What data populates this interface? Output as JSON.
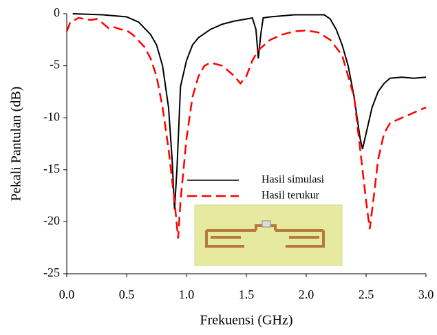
{
  "chart_data": {
    "type": "line",
    "xlabel": "Frekuensi (GHz)",
    "ylabel": "Pekali Pantulan (dB)",
    "xlim": [
      0,
      3
    ],
    "ylim": [
      -25,
      0
    ],
    "xticks": [
      {
        "value": 0,
        "label": "0.0"
      },
      0.5,
      {
        "value": 1,
        "label": "1.0"
      },
      1.5,
      {
        "value": 2,
        "label": "2.0"
      },
      2.5,
      {
        "value": 3,
        "label": "3.0"
      }
    ],
    "yticks": [
      0,
      -5,
      -10,
      -15,
      -20,
      -25
    ],
    "series": [
      {
        "name": "Hasil simulasi",
        "color": "#000000",
        "dash": false,
        "x": [
          0.05,
          0.3,
          0.5,
          0.6,
          0.7,
          0.75,
          0.8,
          0.85,
          0.88,
          0.9,
          0.92,
          0.95,
          1.0,
          1.05,
          1.1,
          1.2,
          1.3,
          1.4,
          1.5,
          1.55,
          1.58,
          1.6,
          1.62,
          1.64,
          1.7,
          1.8,
          1.9,
          2.0,
          2.1,
          2.15,
          2.2,
          2.25,
          2.3,
          2.35,
          2.4,
          2.45,
          2.47,
          2.5,
          2.55,
          2.6,
          2.65,
          2.7,
          2.8,
          2.9,
          3.0
        ],
        "values": [
          0,
          -0.1,
          -0.3,
          -0.8,
          -2,
          -3,
          -5,
          -9,
          -14,
          -18.8,
          -15,
          -7,
          -4.5,
          -3,
          -2.3,
          -1.5,
          -1,
          -0.7,
          -0.5,
          -0.4,
          -1.5,
          -4.3,
          -2,
          -0.4,
          -0.3,
          -0.2,
          -0.1,
          -0.1,
          -0.1,
          -0.1,
          -0.5,
          -1.5,
          -3,
          -5,
          -8,
          -12,
          -13,
          -11.5,
          -9,
          -7.5,
          -6.7,
          -6.2,
          -6.1,
          -6.2,
          -6.1
        ]
      },
      {
        "name": "Hasil terukur",
        "color": "#ff0000",
        "dash": true,
        "x": [
          0,
          0.03,
          0.1,
          0.15,
          0.2,
          0.25,
          0.3,
          0.35,
          0.4,
          0.45,
          0.5,
          0.55,
          0.6,
          0.65,
          0.7,
          0.75,
          0.8,
          0.85,
          0.9,
          0.93,
          0.95,
          1.0,
          1.05,
          1.1,
          1.15,
          1.2,
          1.3,
          1.35,
          1.4,
          1.45,
          1.5,
          1.55,
          1.6,
          1.7,
          1.8,
          1.9,
          2.0,
          2.1,
          2.2,
          2.3,
          2.4,
          2.45,
          2.5,
          2.53,
          2.56,
          2.6,
          2.65,
          2.7,
          2.8,
          2.9,
          3.0
        ],
        "values": [
          -1.7,
          -0.8,
          -0.4,
          -0.5,
          -0.6,
          -0.5,
          -0.9,
          -1.4,
          -1.3,
          -1.5,
          -1.6,
          -2,
          -2.6,
          -3.2,
          -4.3,
          -6,
          -9,
          -13,
          -18,
          -21.6,
          -18,
          -12,
          -8,
          -6,
          -5,
          -4.7,
          -5,
          -5.5,
          -6,
          -6.7,
          -6,
          -4.5,
          -3.5,
          -2.5,
          -2,
          -1.7,
          -1.6,
          -1.8,
          -2.5,
          -4,
          -8,
          -13,
          -18,
          -20.7,
          -18,
          -14,
          -11.5,
          -10.5,
          -10,
          -9.5,
          -9
        ]
      }
    ]
  }
}
